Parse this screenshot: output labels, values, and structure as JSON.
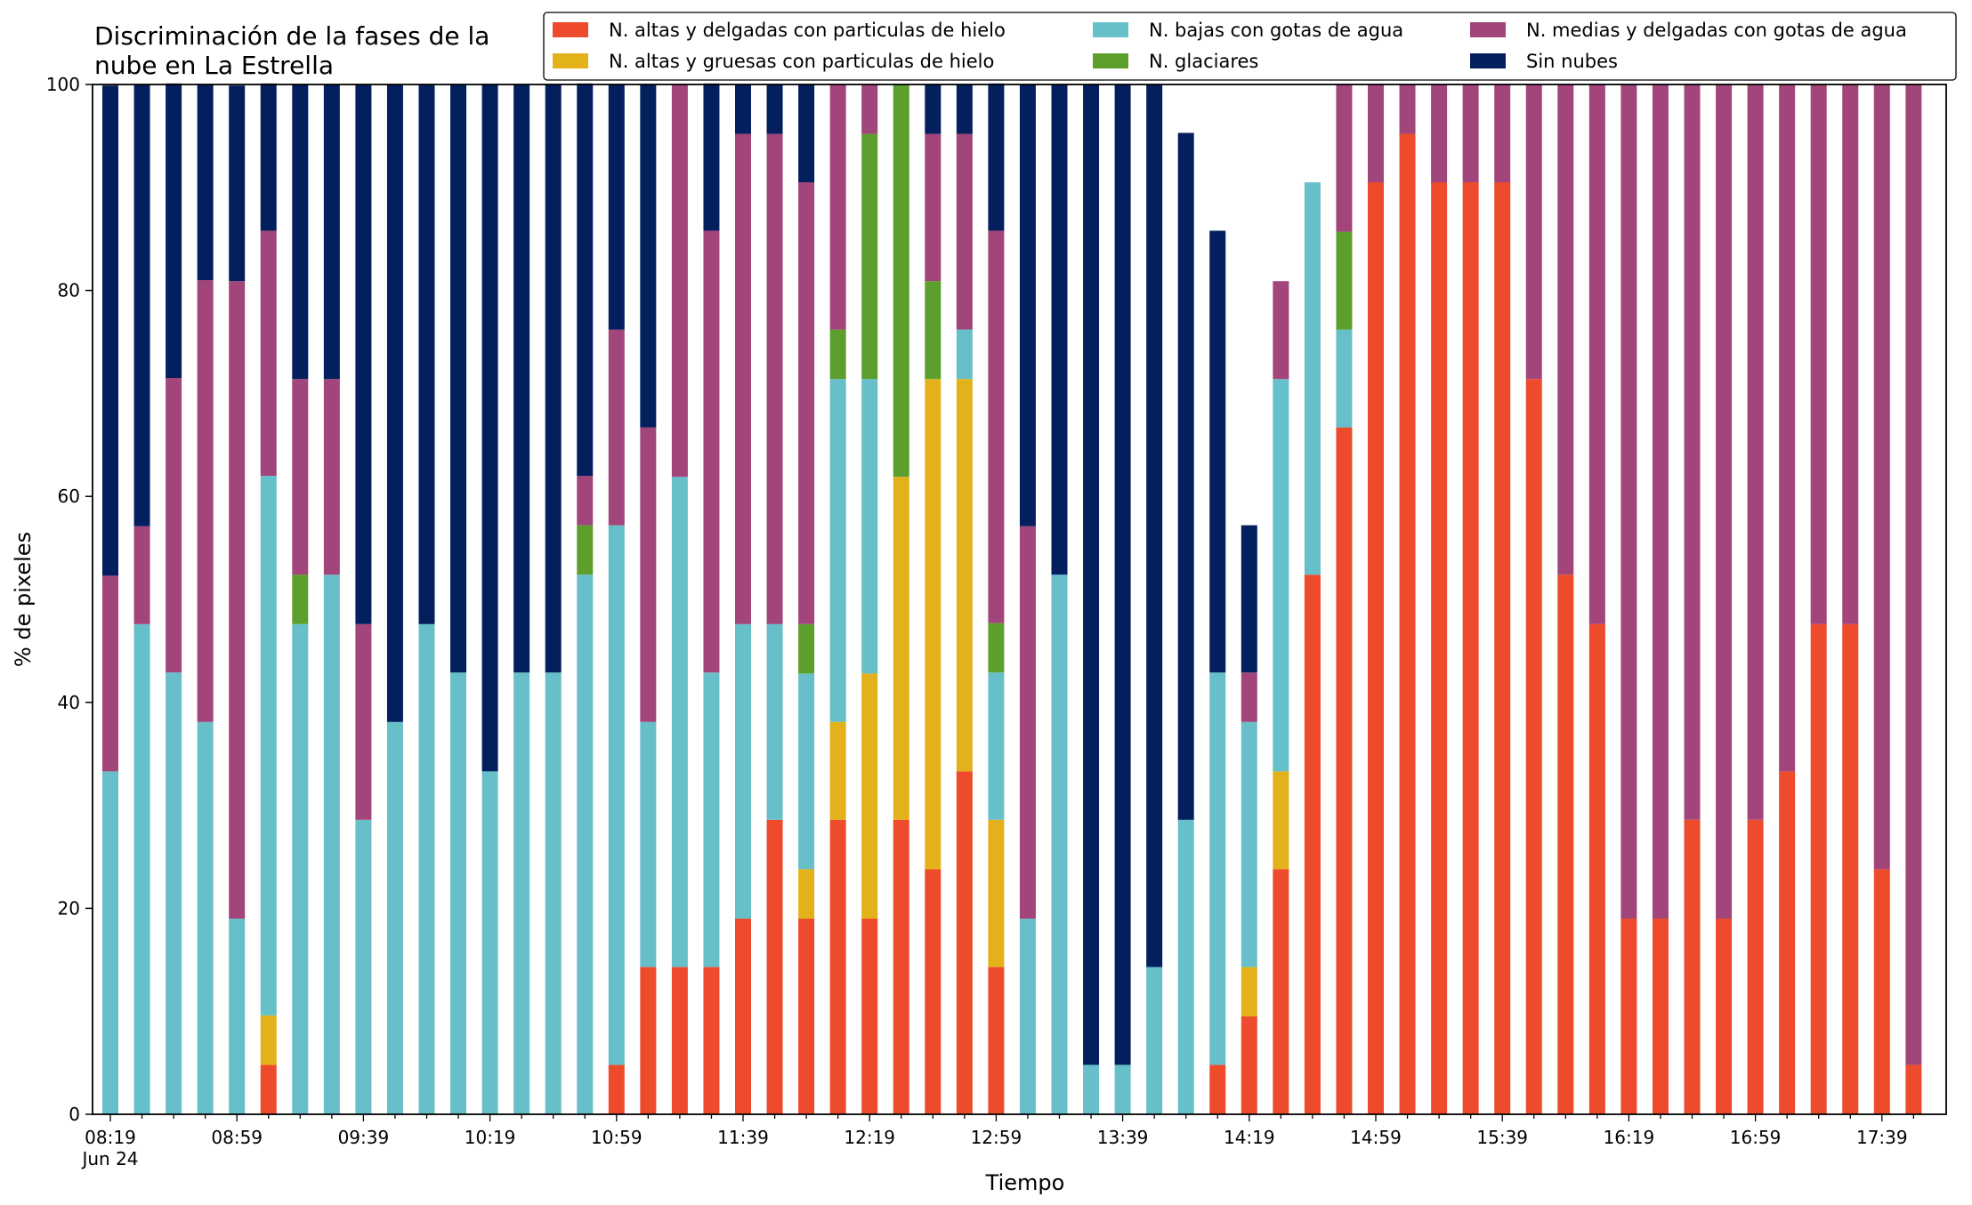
{
  "chart_data": {
    "type": "bar",
    "stacked": true,
    "title": "Discriminación de la fases de la\nnube en La Estrella",
    "xlabel": "Tiempo",
    "ylabel": "% de pixeles",
    "ylim": [
      0,
      100
    ],
    "yticks": [
      0,
      20,
      40,
      60,
      80,
      100
    ],
    "xtick_labels": [
      {
        "index": 0,
        "label": "08:19",
        "sublabel": "Jun 24"
      },
      {
        "index": 4,
        "label": "08:59"
      },
      {
        "index": 8,
        "label": "09:39"
      },
      {
        "index": 12,
        "label": "10:19"
      },
      {
        "index": 16,
        "label": "10:59"
      },
      {
        "index": 20,
        "label": "11:39"
      },
      {
        "index": 24,
        "label": "12:19"
      },
      {
        "index": 28,
        "label": "12:59"
      },
      {
        "index": 32,
        "label": "13:39"
      },
      {
        "index": 36,
        "label": "14:19"
      },
      {
        "index": 40,
        "label": "14:59"
      },
      {
        "index": 44,
        "label": "15:39"
      },
      {
        "index": 48,
        "label": "16:19"
      },
      {
        "index": 52,
        "label": "16:59"
      },
      {
        "index": 56,
        "label": "17:39"
      }
    ],
    "categories": [
      "08:19",
      "08:29",
      "08:39",
      "08:49",
      "08:59",
      "09:09",
      "09:19",
      "09:29",
      "09:39",
      "09:49",
      "09:59",
      "10:09",
      "10:19",
      "10:29",
      "10:39",
      "10:49",
      "10:59",
      "11:09",
      "11:19",
      "11:29",
      "11:39",
      "11:49",
      "11:59",
      "12:09",
      "12:19",
      "12:29",
      "12:39",
      "12:49",
      "12:59",
      "13:09",
      "13:19",
      "13:29",
      "13:39",
      "13:49",
      "13:59",
      "14:09",
      "14:19",
      "14:29",
      "14:39",
      "14:49",
      "14:59",
      "15:09",
      "15:19",
      "15:29",
      "15:39",
      "15:49",
      "15:59",
      "16:09",
      "16:19",
      "16:29",
      "16:39",
      "16:49",
      "16:59",
      "17:09",
      "17:19",
      "17:29",
      "17:39",
      "17:49"
    ],
    "legend": {
      "placement": "top-right",
      "columns": 3
    },
    "grid": false,
    "series": [
      {
        "name": "N. altas y delgadas con particulas de hielo",
        "color": "#EE4A2C",
        "values": [
          0,
          0,
          0,
          0,
          0,
          4.8,
          0,
          0,
          0,
          0,
          0,
          0,
          0,
          0,
          0,
          0,
          4.8,
          14.3,
          14.3,
          14.3,
          19,
          28.6,
          19,
          28.6,
          19,
          28.6,
          23.8,
          33.3,
          14.3,
          0,
          0,
          0,
          0,
          0,
          0,
          4.8,
          9.5,
          23.8,
          52.4,
          66.7,
          90.5,
          95.2,
          90.5,
          90.5,
          90.5,
          71.4,
          52.4,
          47.6,
          19,
          19,
          28.6,
          19,
          28.6,
          33.3,
          47.6,
          47.6,
          23.8,
          4.8
        ]
      },
      {
        "name": "N. altas y gruesas con particulas de hielo",
        "color": "#E3B21A",
        "values": [
          0,
          0,
          0,
          0,
          0,
          4.8,
          0,
          0,
          0,
          0,
          0,
          0,
          0,
          0,
          0,
          0,
          0,
          0,
          0,
          0,
          0,
          0,
          4.8,
          9.5,
          23.8,
          33.3,
          47.6,
          38.1,
          14.3,
          0,
          0,
          0,
          0,
          0,
          0,
          0,
          4.8,
          9.5,
          0,
          0,
          0,
          0,
          0,
          0,
          0,
          0,
          0,
          0,
          0,
          0,
          0,
          0,
          0,
          0,
          0,
          0,
          0,
          0
        ]
      },
      {
        "name": "N. bajas con gotas de agua",
        "color": "#67BFC9",
        "values": [
          33.3,
          47.6,
          42.9,
          38.1,
          19,
          52.4,
          47.6,
          52.4,
          28.6,
          38.1,
          47.6,
          42.9,
          33.3,
          42.9,
          42.9,
          52.4,
          52.4,
          23.8,
          47.6,
          28.6,
          28.6,
          19,
          19,
          33.3,
          28.6,
          0,
          0,
          4.8,
          14.3,
          19,
          52.4,
          4.8,
          4.8,
          14.3,
          28.6,
          38.1,
          23.8,
          38.1,
          38.1,
          9.5,
          0,
          0,
          0,
          0,
          0,
          0,
          0,
          0,
          0,
          0,
          0,
          0,
          0,
          0,
          0,
          0,
          0,
          0
        ]
      },
      {
        "name": "N. glaciares",
        "color": "#5C9F2C",
        "values": [
          0,
          0,
          0,
          0,
          0,
          0,
          4.8,
          0,
          0,
          0,
          0,
          0,
          0,
          0,
          0,
          4.8,
          0,
          0,
          0,
          0,
          0,
          0,
          4.8,
          4.8,
          23.8,
          38.1,
          9.5,
          0,
          4.8,
          0,
          0,
          0,
          0,
          0,
          0,
          0,
          0,
          0,
          0,
          9.5,
          0,
          0,
          0,
          0,
          0,
          0,
          0,
          0,
          0,
          0,
          0,
          0,
          0,
          0,
          0,
          0,
          0,
          0
        ]
      },
      {
        "name": "N. medias y delgadas con gotas de agua",
        "color": "#A2457A",
        "values": [
          19,
          9.5,
          28.6,
          42.9,
          61.9,
          23.8,
          19,
          19,
          19,
          0,
          0,
          0,
          0,
          0,
          0,
          4.8,
          19,
          28.6,
          38.1,
          42.9,
          47.6,
          47.6,
          42.9,
          23.8,
          4.8,
          0,
          14.3,
          19,
          38.1,
          38.1,
          0,
          0,
          0,
          0,
          0,
          0,
          4.8,
          9.5,
          0,
          14.3,
          9.5,
          4.8,
          9.5,
          9.5,
          9.5,
          28.6,
          47.6,
          52.4,
          81,
          81,
          71.4,
          81,
          71.4,
          66.7,
          52.4,
          52.4,
          76.2,
          95.2
        ]
      },
      {
        "name": "Sin nubes",
        "color": "#031F5E",
        "values": [
          47.6,
          42.9,
          28.6,
          19,
          19,
          14.3,
          28.6,
          28.6,
          52.4,
          61.9,
          52.4,
          57.1,
          66.7,
          57.1,
          57.1,
          38.1,
          23.8,
          33.3,
          0,
          14.3,
          4.8,
          4.8,
          9.5,
          0,
          0,
          0,
          4.8,
          4.8,
          14.3,
          42.9,
          47.6,
          95.2,
          95.2,
          85.7,
          66.7,
          42.9,
          14.3,
          0,
          0,
          0,
          0,
          0,
          0,
          0,
          0,
          0,
          0,
          0,
          0,
          0,
          0,
          0,
          0,
          0,
          0,
          0,
          0,
          0
        ]
      }
    ]
  }
}
